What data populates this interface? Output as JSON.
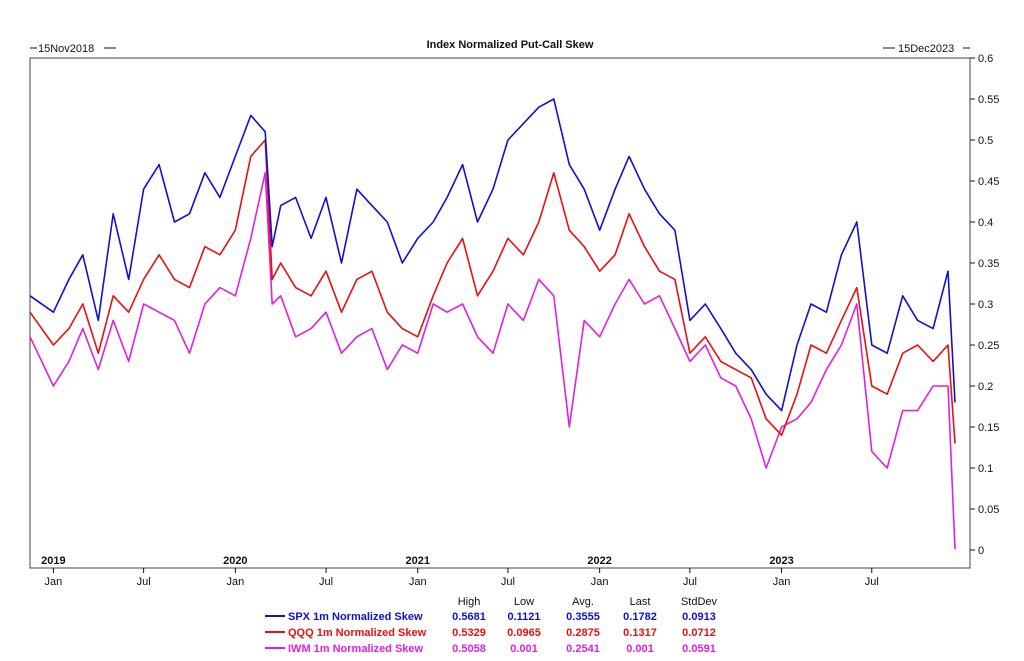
{
  "chart_data": {
    "type": "line",
    "title": "Index Normalized Put-Call Skew",
    "start_label": "15Nov2018",
    "end_label": "15Dec2023",
    "xlim": [
      "2018-11-15",
      "2023-12-15"
    ],
    "ylim": [
      0,
      0.6
    ],
    "y_ticks": [
      "0",
      "0.05",
      "0.1",
      "0.15",
      "0.2",
      "0.25",
      "0.3",
      "0.35",
      "0.4",
      "0.45",
      "0.5",
      "0.55",
      "0.6"
    ],
    "x_month_ticks": [
      {
        "date": "2019-01-01",
        "label": "Jan"
      },
      {
        "date": "2019-07-01",
        "label": "Jul"
      },
      {
        "date": "2020-01-01",
        "label": "Jan"
      },
      {
        "date": "2020-07-01",
        "label": "Jul"
      },
      {
        "date": "2021-01-01",
        "label": "Jan"
      },
      {
        "date": "2021-07-01",
        "label": "Jul"
      },
      {
        "date": "2022-01-01",
        "label": "Jan"
      },
      {
        "date": "2022-07-01",
        "label": "Jul"
      },
      {
        "date": "2023-01-01",
        "label": "Jan"
      },
      {
        "date": "2023-07-01",
        "label": "Jul"
      }
    ],
    "x_year_labels": [
      {
        "date": "2019-01-01",
        "label": "2019"
      },
      {
        "date": "2020-01-01",
        "label": "2020"
      },
      {
        "date": "2021-01-01",
        "label": "2021"
      },
      {
        "date": "2022-01-01",
        "label": "2022"
      },
      {
        "date": "2023-01-01",
        "label": "2023"
      }
    ],
    "grid": false,
    "legend_position": "bottom",
    "legend_headers": [
      "High",
      "Low",
      "Avg.",
      "Last",
      "StdDev"
    ],
    "series": [
      {
        "name": "SPX 1m Normalized Skew",
        "color": "#1010d0",
        "stats": [
          "0.5681",
          "0.1121",
          "0.3555",
          "0.1782",
          "0.0913"
        ],
        "x": [
          "2018-11-15",
          "2019-01-01",
          "2019-02-01",
          "2019-03-01",
          "2019-04-01",
          "2019-05-01",
          "2019-06-01",
          "2019-07-01",
          "2019-08-01",
          "2019-09-01",
          "2019-10-01",
          "2019-11-01",
          "2019-12-01",
          "2020-01-01",
          "2020-02-01",
          "2020-03-01",
          "2020-03-15",
          "2020-04-01",
          "2020-05-01",
          "2020-06-01",
          "2020-07-01",
          "2020-08-01",
          "2020-09-01",
          "2020-10-01",
          "2020-11-01",
          "2020-12-01",
          "2021-01-01",
          "2021-02-01",
          "2021-03-01",
          "2021-04-01",
          "2021-05-01",
          "2021-06-01",
          "2021-07-01",
          "2021-08-01",
          "2021-09-01",
          "2021-10-01",
          "2021-11-01",
          "2021-12-01",
          "2022-01-01",
          "2022-02-01",
          "2022-03-01",
          "2022-04-01",
          "2022-05-01",
          "2022-06-01",
          "2022-07-01",
          "2022-08-01",
          "2022-09-01",
          "2022-10-01",
          "2022-11-01",
          "2022-12-01",
          "2023-01-01",
          "2023-02-01",
          "2023-03-01",
          "2023-04-01",
          "2023-05-01",
          "2023-06-01",
          "2023-07-01",
          "2023-08-01",
          "2023-09-01",
          "2023-10-01",
          "2023-11-01",
          "2023-12-01",
          "2023-12-15"
        ],
        "y": [
          0.31,
          0.29,
          0.33,
          0.36,
          0.28,
          0.41,
          0.33,
          0.44,
          0.47,
          0.4,
          0.41,
          0.46,
          0.43,
          0.48,
          0.53,
          0.51,
          0.37,
          0.42,
          0.43,
          0.38,
          0.43,
          0.35,
          0.44,
          0.42,
          0.4,
          0.35,
          0.38,
          0.4,
          0.43,
          0.47,
          0.4,
          0.44,
          0.5,
          0.52,
          0.54,
          0.55,
          0.47,
          0.44,
          0.39,
          0.44,
          0.48,
          0.44,
          0.41,
          0.39,
          0.28,
          0.3,
          0.27,
          0.24,
          0.22,
          0.19,
          0.17,
          0.25,
          0.3,
          0.29,
          0.36,
          0.4,
          0.25,
          0.24,
          0.31,
          0.28,
          0.27,
          0.34,
          0.18
        ]
      },
      {
        "name": "QQQ 1m Normalized Skew",
        "color": "#e81010",
        "stats": [
          "0.5329",
          "0.0965",
          "0.2875",
          "0.1317",
          "0.0712"
        ],
        "x": [
          "2018-11-15",
          "2019-01-01",
          "2019-02-01",
          "2019-03-01",
          "2019-04-01",
          "2019-05-01",
          "2019-06-01",
          "2019-07-01",
          "2019-08-01",
          "2019-09-01",
          "2019-10-01",
          "2019-11-01",
          "2019-12-01",
          "2020-01-01",
          "2020-02-01",
          "2020-03-01",
          "2020-03-15",
          "2020-04-01",
          "2020-05-01",
          "2020-06-01",
          "2020-07-01",
          "2020-08-01",
          "2020-09-01",
          "2020-10-01",
          "2020-11-01",
          "2020-12-01",
          "2021-01-01",
          "2021-02-01",
          "2021-03-01",
          "2021-04-01",
          "2021-05-01",
          "2021-06-01",
          "2021-07-01",
          "2021-08-01",
          "2021-09-01",
          "2021-10-01",
          "2021-11-01",
          "2021-12-01",
          "2022-01-01",
          "2022-02-01",
          "2022-03-01",
          "2022-04-01",
          "2022-05-01",
          "2022-06-01",
          "2022-07-01",
          "2022-08-01",
          "2022-09-01",
          "2022-10-01",
          "2022-11-01",
          "2022-12-01",
          "2023-01-01",
          "2023-02-01",
          "2023-03-01",
          "2023-04-01",
          "2023-05-01",
          "2023-06-01",
          "2023-07-01",
          "2023-08-01",
          "2023-09-01",
          "2023-10-01",
          "2023-11-01",
          "2023-12-01",
          "2023-12-15"
        ],
        "y": [
          0.29,
          0.25,
          0.27,
          0.3,
          0.24,
          0.31,
          0.29,
          0.33,
          0.36,
          0.33,
          0.32,
          0.37,
          0.36,
          0.39,
          0.48,
          0.5,
          0.33,
          0.35,
          0.32,
          0.31,
          0.34,
          0.29,
          0.33,
          0.34,
          0.29,
          0.27,
          0.26,
          0.31,
          0.35,
          0.38,
          0.31,
          0.34,
          0.38,
          0.36,
          0.4,
          0.46,
          0.39,
          0.37,
          0.34,
          0.36,
          0.41,
          0.37,
          0.34,
          0.33,
          0.24,
          0.26,
          0.23,
          0.22,
          0.21,
          0.16,
          0.14,
          0.19,
          0.25,
          0.24,
          0.28,
          0.32,
          0.2,
          0.19,
          0.24,
          0.25,
          0.23,
          0.25,
          0.13
        ]
      },
      {
        "name": "IWM 1m Normalized Skew",
        "color": "#e020e0",
        "stats": [
          "0.5058",
          "0.001",
          "0.2541",
          "0.001",
          "0.0591"
        ],
        "x": [
          "2018-11-15",
          "2019-01-01",
          "2019-02-01",
          "2019-03-01",
          "2019-04-01",
          "2019-05-01",
          "2019-06-01",
          "2019-07-01",
          "2019-08-01",
          "2019-09-01",
          "2019-10-01",
          "2019-11-01",
          "2019-12-01",
          "2020-01-01",
          "2020-02-01",
          "2020-03-01",
          "2020-03-15",
          "2020-04-01",
          "2020-05-01",
          "2020-06-01",
          "2020-07-01",
          "2020-08-01",
          "2020-09-01",
          "2020-10-01",
          "2020-11-01",
          "2020-12-01",
          "2021-01-01",
          "2021-02-01",
          "2021-03-01",
          "2021-04-01",
          "2021-05-01",
          "2021-06-01",
          "2021-07-01",
          "2021-08-01",
          "2021-09-01",
          "2021-10-01",
          "2021-11-01",
          "2021-12-01",
          "2022-01-01",
          "2022-02-01",
          "2022-03-01",
          "2022-04-01",
          "2022-05-01",
          "2022-06-01",
          "2022-07-01",
          "2022-08-01",
          "2022-09-01",
          "2022-10-01",
          "2022-11-01",
          "2022-12-01",
          "2023-01-01",
          "2023-02-01",
          "2023-03-01",
          "2023-04-01",
          "2023-05-01",
          "2023-06-01",
          "2023-07-01",
          "2023-08-01",
          "2023-09-01",
          "2023-10-01",
          "2023-11-01",
          "2023-12-01",
          "2023-12-15"
        ],
        "y": [
          0.26,
          0.2,
          0.23,
          0.27,
          0.22,
          0.28,
          0.23,
          0.3,
          0.29,
          0.28,
          0.24,
          0.3,
          0.32,
          0.31,
          0.38,
          0.46,
          0.3,
          0.31,
          0.26,
          0.27,
          0.29,
          0.24,
          0.26,
          0.27,
          0.22,
          0.25,
          0.24,
          0.3,
          0.29,
          0.3,
          0.26,
          0.24,
          0.3,
          0.28,
          0.33,
          0.31,
          0.15,
          0.28,
          0.26,
          0.3,
          0.33,
          0.3,
          0.31,
          0.27,
          0.23,
          0.25,
          0.21,
          0.2,
          0.16,
          0.1,
          0.15,
          0.16,
          0.18,
          0.22,
          0.25,
          0.3,
          0.12,
          0.1,
          0.17,
          0.17,
          0.2,
          0.2,
          0.001
        ]
      }
    ]
  }
}
